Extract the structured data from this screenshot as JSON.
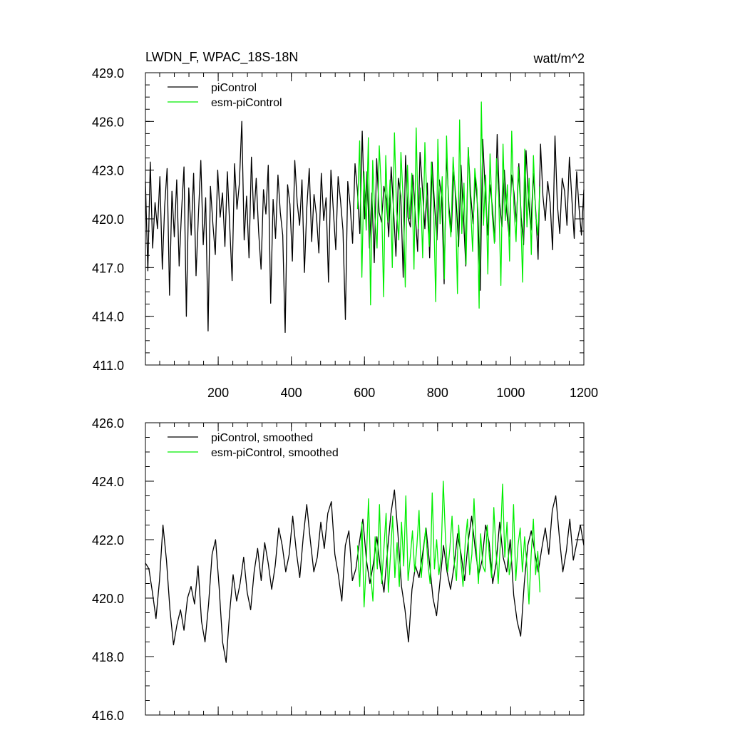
{
  "chart_data": [
    {
      "type": "line",
      "title": "LWDN_F, WPAC_18S-18N",
      "units_label": "watt/m^2",
      "xlim": [
        1,
        1200
      ],
      "ylim": [
        411.0,
        429.0
      ],
      "x_ticks": [
        200,
        400,
        600,
        800,
        1000,
        1200
      ],
      "x_tick_labels": [
        "200",
        "400",
        "600",
        "800",
        "1000",
        "1200"
      ],
      "y_ticks": [
        411.0,
        414.0,
        417.0,
        420.0,
        423.0,
        426.0,
        429.0
      ],
      "y_tick_labels": [
        "411.0",
        "414.0",
        "417.0",
        "420.0",
        "423.0",
        "426.0",
        "429.0"
      ],
      "legend_position": "top-left",
      "series": [
        {
          "name": "piControl",
          "color": "#000000",
          "x_range": [
            1,
            1200
          ],
          "mean": 421.2,
          "std": 2.2,
          "min": 413.0,
          "max": 426.0,
          "values": [
            422.3,
            416.8,
            423.5,
            418.2,
            421.0,
            419.4,
            422.6,
            416.9,
            420.8,
            423.1,
            415.3,
            421.7,
            418.9,
            422.4,
            417.1,
            420.5,
            423.2,
            414.0,
            421.9,
            419.0,
            422.8,
            416.5,
            420.2,
            423.6,
            418.4,
            421.3,
            413.1,
            422.0,
            419.7,
            417.8,
            423.0,
            420.1,
            421.6,
            418.3,
            422.9,
            419.5,
            416.2,
            423.4,
            420.6,
            422.2,
            426.0,
            418.7,
            421.4,
            417.6,
            423.8,
            420.0,
            422.5,
            419.2,
            416.9,
            421.8,
            420.3,
            423.3,
            414.8,
            421.2,
            418.8,
            422.7,
            420.4,
            419.0,
            413.0,
            422.1,
            420.9,
            417.4,
            423.6,
            421.0,
            419.6,
            422.4,
            416.7,
            420.7,
            423.1,
            418.6,
            421.5,
            420.2,
            417.9,
            422.8,
            419.9,
            421.3,
            416.1,
            423.0,
            420.5,
            418.1,
            422.6,
            421.1,
            419.3,
            413.8,
            422.3,
            420.8,
            418.5,
            423.4,
            421.7,
            419.1,
            425.4,
            420.0,
            422.9,
            418.2,
            421.6,
            417.3,
            423.7,
            420.4,
            419.8,
            422.0,
            421.2,
            418.9,
            423.2,
            420.6,
            417.7,
            422.5,
            421.4,
            416.4,
            423.9,
            420.1,
            419.5,
            422.7,
            420.3,
            418.0,
            424.1,
            421.8,
            419.4,
            422.2,
            417.6,
            423.5,
            420.9,
            418.7,
            422.4,
            421.3,
            416.0,
            424.0,
            420.7,
            419.2,
            422.9,
            421.1,
            418.3,
            423.3,
            420.2,
            417.1,
            424.4,
            421.5,
            419.7,
            422.6,
            420.5,
            415.6,
            424.9,
            421.9,
            419.0,
            422.1,
            420.8,
            418.6,
            425.2,
            421.0,
            419.5,
            423.0,
            420.4,
            418.9,
            422.7,
            421.6,
            419.8,
            423.4,
            420.1,
            418.4,
            424.2,
            421.2,
            419.3,
            422.8,
            420.6,
            417.5,
            424.6,
            421.4,
            419.9,
            422.3,
            421.0,
            418.1,
            425.1,
            420.9,
            419.1,
            422.5,
            421.7,
            419.6,
            423.8,
            421.3,
            418.8,
            422.9,
            420.7,
            419.0,
            421.8
          ]
        },
        {
          "name": "esm-piControl",
          "color": "#00ee00",
          "x_range": [
            581,
            1080
          ],
          "mean": 421.3,
          "std": 2.4,
          "min": 414.5,
          "max": 427.2,
          "values": [
            420.6,
            424.8,
            416.4,
            422.9,
            419.3,
            425.0,
            414.7,
            423.6,
            420.1,
            418.2,
            424.5,
            421.7,
            415.2,
            423.9,
            419.8,
            422.4,
            417.0,
            425.3,
            420.5,
            418.7,
            424.1,
            421.2,
            415.8,
            423.3,
            420.0,
            422.8,
            416.9,
            425.6,
            419.4,
            421.9,
            417.6,
            424.7,
            420.8,
            418.3,
            423.5,
            421.1,
            414.9,
            424.9,
            419.7,
            422.6,
            416.3,
            425.1,
            420.4,
            418.9,
            423.8,
            421.5,
            415.4,
            426.1,
            419.1,
            422.2,
            417.2,
            424.4,
            420.9,
            418.0,
            423.1,
            421.8,
            414.5,
            427.2,
            419.6,
            422.7,
            416.6,
            424.0,
            420.3,
            418.5,
            423.7,
            421.3,
            415.9,
            424.6,
            419.9,
            422.1,
            417.4,
            425.4,
            420.7,
            418.6,
            423.2,
            421.0,
            416.1,
            424.3,
            419.5,
            422.5,
            417.8,
            423.9,
            420.2,
            419.0,
            422.0
          ]
        }
      ]
    },
    {
      "type": "line",
      "title": "",
      "xlim": [
        1,
        1200
      ],
      "ylim": [
        416.0,
        426.0
      ],
      "y_ticks": [
        416.0,
        418.0,
        420.0,
        422.0,
        424.0,
        426.0
      ],
      "y_tick_labels": [
        "416.0",
        "418.0",
        "420.0",
        "422.0",
        "424.0",
        "426.0"
      ],
      "legend_position": "top-left",
      "series": [
        {
          "name": "piControl, smoothed",
          "color": "#000000",
          "x_range": [
            1,
            1200
          ],
          "values": [
            421.2,
            421.0,
            420.2,
            419.3,
            420.6,
            422.5,
            421.3,
            419.6,
            418.4,
            419.1,
            419.6,
            418.9,
            420.0,
            420.4,
            419.8,
            421.1,
            419.2,
            418.5,
            419.8,
            421.5,
            422.0,
            420.4,
            418.5,
            417.8,
            419.5,
            420.8,
            419.9,
            420.5,
            421.4,
            420.2,
            419.6,
            420.9,
            421.7,
            420.6,
            421.9,
            421.2,
            420.3,
            421.1,
            422.4,
            421.8,
            420.9,
            421.5,
            422.8,
            421.6,
            420.7,
            422.1,
            423.2,
            422.0,
            420.9,
            421.4,
            422.6,
            421.7,
            422.9,
            423.3,
            421.5,
            420.8,
            419.9,
            421.8,
            422.3,
            420.6,
            421.0,
            421.9,
            422.7,
            421.3,
            420.5,
            421.2,
            422.1,
            421.0,
            420.2,
            421.6,
            422.9,
            423.7,
            422.2,
            420.4,
            419.6,
            418.5,
            420.3,
            421.1,
            420.7,
            421.5,
            422.4,
            421.2,
            420.0,
            419.4,
            420.6,
            421.8,
            420.9,
            420.3,
            421.1,
            422.2,
            421.5,
            420.6,
            421.9,
            422.8,
            421.7,
            420.8,
            421.3,
            422.5,
            421.9,
            420.5,
            421.2,
            422.6,
            421.4,
            420.9,
            422.0,
            420.1,
            419.2,
            418.7,
            420.5,
            421.8,
            422.3,
            421.6,
            420.9,
            421.7,
            422.4,
            421.5,
            423.0,
            423.5,
            422.1,
            420.9,
            421.6,
            422.7,
            421.3,
            421.9,
            422.5,
            421.8
          ]
        },
        {
          "name": "esm-piControl, smoothed",
          "color": "#00ee00",
          "x_range": [
            581,
            1080
          ],
          "values": [
            421.8,
            420.4,
            422.6,
            419.7,
            421.2,
            423.4,
            420.8,
            419.9,
            422.1,
            421.0,
            423.2,
            420.5,
            421.7,
            422.9,
            420.2,
            421.5,
            422.8,
            420.7,
            421.9,
            420.4,
            422.6,
            421.1,
            423.5,
            420.6,
            421.4,
            422.3,
            420.9,
            421.8,
            423.0,
            420.7,
            421.6,
            422.4,
            421.2,
            420.5,
            423.6,
            421.0,
            422.0,
            420.8,
            421.4,
            424.0,
            422.1,
            420.9,
            421.7,
            422.8,
            421.2,
            420.6,
            422.5,
            421.3,
            420.4,
            421.9,
            422.7,
            420.8,
            421.5,
            423.4,
            421.7,
            420.5,
            422.2,
            421.1,
            420.9,
            422.5,
            421.4,
            420.7,
            423.1,
            421.6,
            420.5,
            421.9,
            423.9,
            421.4,
            422.6,
            420.8,
            421.3,
            423.2,
            420.6,
            421.8,
            422.4,
            420.9,
            422.1,
            421.2,
            419.8,
            421.5,
            422.7,
            420.8,
            421.6,
            420.2
          ]
        }
      ]
    }
  ]
}
